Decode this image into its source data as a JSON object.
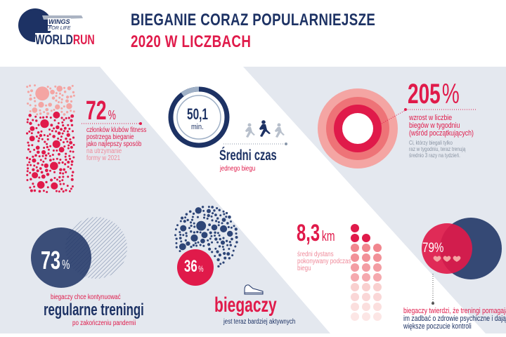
{
  "logo": {
    "line1": "WINGS",
    "line2": "FOR LIFE",
    "world": "WORLD",
    "run": "RUN"
  },
  "header": {
    "title_line1": "BIEGANIE CORAZ POPULARNIEJSZE",
    "title_line2": "2020 W LICZBACH"
  },
  "colors": {
    "navy": "#1d3264",
    "red": "#e01a4a",
    "pink": "#ef8a9a",
    "panel": "#e4e8ef"
  },
  "stat_fitness": {
    "value": "72",
    "unit": "%",
    "text": [
      "członków klubów fitness",
      "postrzega bieganie",
      "jako najlepszy sposób"
    ],
    "text_faded": [
      "na utrzymanie",
      "formy w 2021"
    ],
    "fraction": 0.72
  },
  "stat_time": {
    "value": "50,1",
    "unit": "min.",
    "title": "Średni czas",
    "subtitle": "jednego biegu",
    "ring_fraction": 0.85
  },
  "stat_growth": {
    "value": "205",
    "unit": "%",
    "text": [
      "wzrost w liczbie",
      "biegów w tygodniu",
      "(wśród początkujących)"
    ],
    "note": [
      "Ci, którzy biegali tylko",
      "raz w tygodniu, teraz trenują",
      "średnio 3 razy na tydzień."
    ]
  },
  "stat_regular": {
    "value": "73",
    "unit": "%",
    "pre": "biegaczy chce kontynuować",
    "title": "regularne treningi",
    "post": "po zakończeniu pandemii"
  },
  "stat_active": {
    "value": "36",
    "unit": "%",
    "title": "biegaczy",
    "post": "jest teraz bardziej aktywnych"
  },
  "stat_distance": {
    "value": "8,3",
    "unit": "km",
    "text": [
      "średni dystans",
      "pokonywany podczas",
      "biegu"
    ]
  },
  "stat_mental": {
    "value": "79%",
    "text_red": "biegaczy twierdzi, że treningi pomagają",
    "text_navy": [
      "im zadbać o zdrowie psychiczne i dają",
      "większe poczucie kontroli"
    ]
  }
}
